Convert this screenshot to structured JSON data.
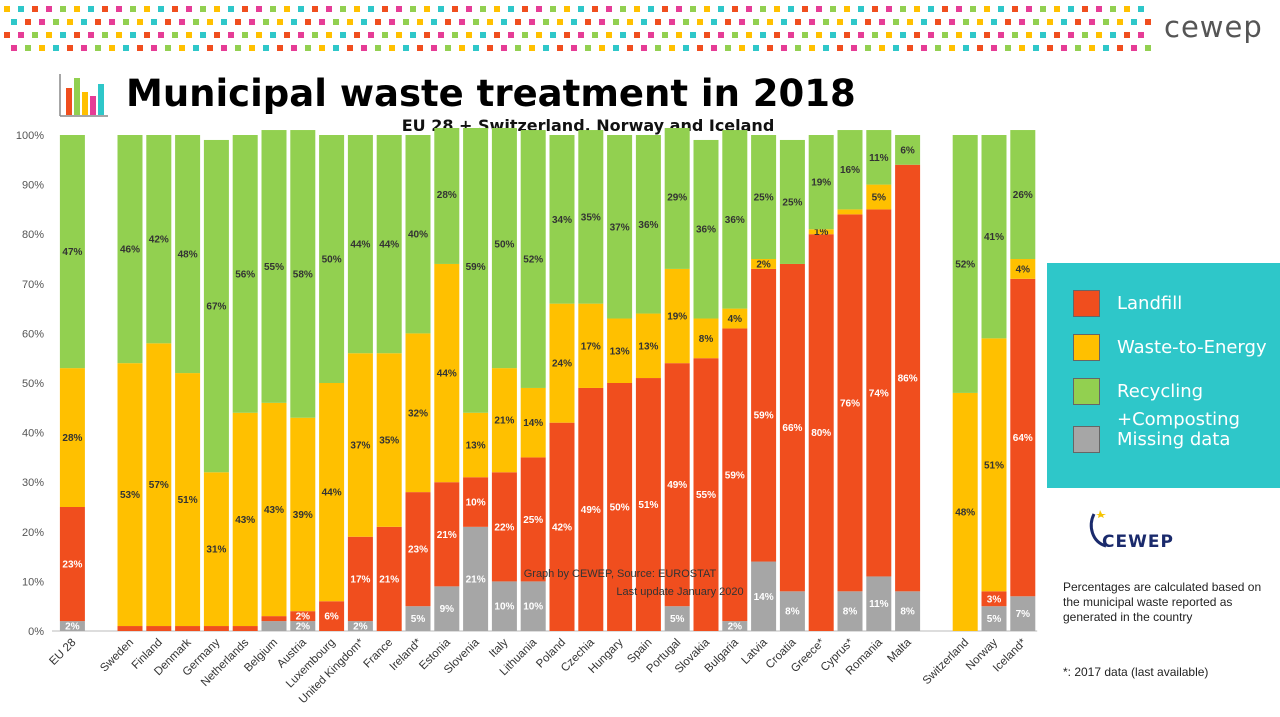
{
  "header": {
    "brand": "cewep"
  },
  "title": "Municipal waste treatment in 2018",
  "subtitle": "EU 28 + Switzerland, Norway and Iceland",
  "colors": {
    "landfill": "#f04e1e",
    "wte": "#ffc000",
    "recycling": "#92d050",
    "missing": "#a6a6a6",
    "legend_bg": "#2ec7c9",
    "brand": "#555555"
  },
  "legend": {
    "items": [
      {
        "label": "Landfill",
        "color": "#f04e1e"
      },
      {
        "label": "Waste-to-Energy",
        "color": "#ffc000"
      },
      {
        "label": "Recycling +Composting",
        "color": "#92d050"
      },
      {
        "label": "Missing data",
        "color": "#a6a6a6"
      }
    ]
  },
  "logo": {
    "text": "CEWEP"
  },
  "notes": {
    "percentages": "Percentages are calculated based on the municipal waste reported as generated in the country",
    "data_2017": "*: 2017 data (last available)"
  },
  "watermark": {
    "line1": "Graph by CEWEP, Source: EUROSTAT",
    "line2": "Last update January 2020"
  },
  "chart_data": {
    "type": "bar",
    "stacked": true,
    "ylim": [
      0,
      100
    ],
    "yticks": [
      "0%",
      "10%",
      "20%",
      "30%",
      "40%",
      "50%",
      "60%",
      "70%",
      "80%",
      "90%",
      "100%"
    ],
    "grid": false,
    "legend_position": "right",
    "categories": [
      "EU 28",
      "Sweden",
      "Finland",
      "Denmark",
      "Germany",
      "Netherlands",
      "Belgium",
      "Austria",
      "Luxembourg",
      "United Kingdom*",
      "France",
      "Ireland*",
      "Estonia",
      "Slovenia",
      "Italy",
      "Lithuania",
      "Poland",
      "Czechia",
      "Hungary",
      "Spain",
      "Portugal",
      "Slovakia",
      "Bulgaria",
      "Latvia",
      "Croatia",
      "Greece*",
      "Cyprus*",
      "Romania",
      "Malta",
      "Switzerland",
      "Norway",
      "Iceland*"
    ],
    "group_breaks_after": [
      "EU 28",
      "Malta"
    ],
    "series": [
      {
        "name": "Missing data",
        "values": [
          2,
          0,
          0,
          0,
          0,
          0,
          2,
          2,
          0,
          2,
          0,
          5,
          9,
          21,
          10,
          10,
          0,
          0,
          0,
          0,
          5,
          0,
          2,
          14,
          8,
          0,
          8,
          11,
          8,
          0,
          5,
          7
        ]
      },
      {
        "name": "Landfill",
        "values": [
          23,
          1,
          1,
          1,
          1,
          1,
          1,
          2,
          6,
          17,
          21,
          23,
          21,
          10,
          22,
          25,
          42,
          49,
          50,
          51,
          49,
          55,
          59,
          59,
          66,
          80,
          76,
          74,
          86,
          0,
          3,
          64
        ]
      },
      {
        "name": "Waste-to-Energy",
        "values": [
          28,
          53,
          57,
          51,
          31,
          43,
          43,
          39,
          44,
          37,
          35,
          32,
          44,
          13,
          21,
          14,
          24,
          17,
          13,
          13,
          19,
          8,
          4,
          2,
          0,
          1,
          1,
          5,
          0,
          48,
          51,
          4
        ]
      },
      {
        "name": "Recycling +Composting",
        "values": [
          47,
          46,
          42,
          48,
          67,
          56,
          55,
          58,
          50,
          44,
          44,
          40,
          28,
          59,
          50,
          52,
          34,
          35,
          37,
          36,
          29,
          36,
          36,
          25,
          25,
          19,
          16,
          11,
          6,
          52,
          41,
          26
        ]
      }
    ],
    "data_labels": {
      "Missing data": [
        "2%",
        "",
        "",
        "",
        "",
        "",
        "",
        "2%",
        "",
        "2%",
        "",
        "5%",
        "9%",
        "21%",
        "10%",
        "10%",
        "",
        "",
        "",
        "",
        "5%",
        "",
        "2%",
        "14%",
        "8%",
        "",
        "8%",
        "11%",
        "8%",
        "",
        "5%",
        "7%"
      ],
      "Landfill": [
        "23%",
        "",
        "",
        "",
        "",
        "",
        "",
        "2%",
        "6%",
        "17%",
        "21%",
        "23%",
        "21%",
        "10%",
        "22%",
        "25%",
        "42%",
        "49%",
        "50%",
        "51%",
        "49%",
        "55%",
        "59%",
        "59%",
        "66%",
        "80%",
        "76%",
        "74%",
        "86%",
        "",
        "3%",
        "64%"
      ],
      "Waste-to-Energy": [
        "28%",
        "53%",
        "57%",
        "51%",
        "31%",
        "43%",
        "43%",
        "39%",
        "44%",
        "37%",
        "35%",
        "32%",
        "44%",
        "13%",
        "21%",
        "14%",
        "24%",
        "17%",
        "13%",
        "13%",
        "19%",
        "8%",
        "4%",
        "2%",
        "",
        "1%",
        "",
        "5%",
        "",
        "48%",
        "51%",
        "4%"
      ],
      "Recycling +Composting": [
        "47%",
        "46%",
        "42%",
        "48%",
        "67%",
        "56%",
        "55%",
        "58%",
        "50%",
        "44%",
        "44%",
        "40%",
        "28%",
        "59%",
        "50%",
        "52%",
        "34%",
        "35%",
        "37%",
        "36%",
        "29%",
        "36%",
        "36%",
        "25%",
        "25%",
        "19%",
        "16%",
        "11%",
        "6%",
        "52%",
        "41%",
        "26%"
      ]
    }
  }
}
